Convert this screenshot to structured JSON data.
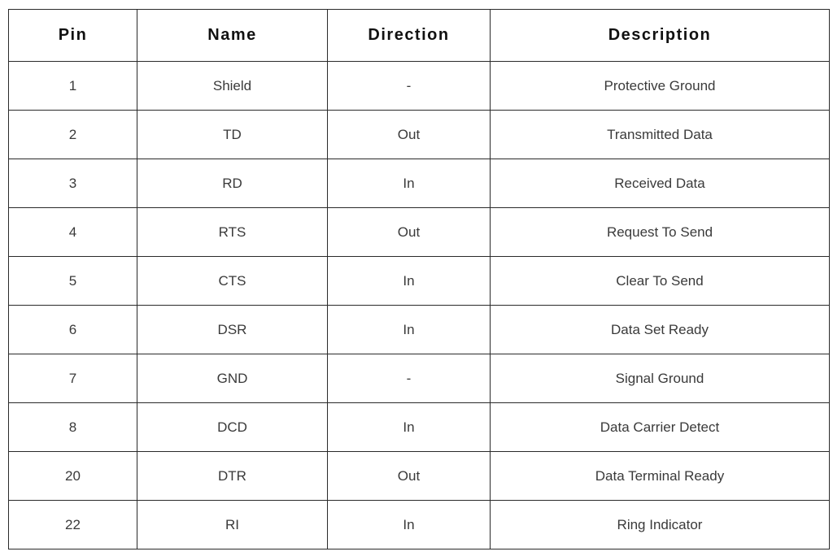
{
  "headers": [
    "Pin",
    "Name",
    "Direction",
    "Description"
  ],
  "rows": [
    [
      "1",
      "Shield",
      "-",
      "Protective Ground"
    ],
    [
      "2",
      "TD",
      "Out",
      "Transmitted Data"
    ],
    [
      "3",
      "RD",
      "In",
      "Received Data"
    ],
    [
      "4",
      "RTS",
      "Out",
      "Request To Send"
    ],
    [
      "5",
      "CTS",
      "In",
      "Clear To Send"
    ],
    [
      "6",
      "DSR",
      "In",
      "Data Set Ready"
    ],
    [
      "7",
      "GND",
      "-",
      "Signal Ground"
    ],
    [
      "8",
      "DCD",
      "In",
      "Data Carrier Detect"
    ],
    [
      "20",
      "DTR",
      "Out",
      "Data Terminal Ready"
    ],
    [
      "22",
      "RI",
      "In",
      "Ring Indicator"
    ]
  ]
}
